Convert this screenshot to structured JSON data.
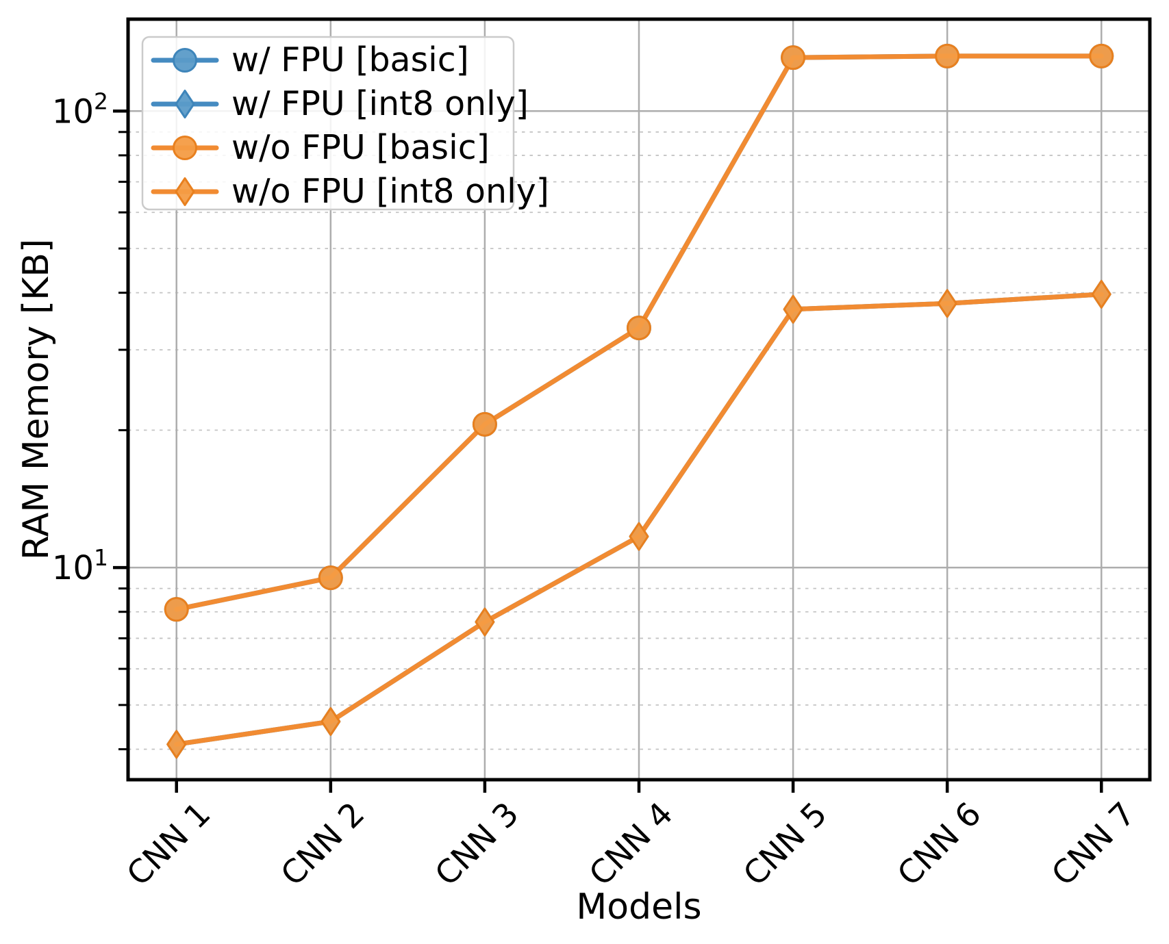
{
  "chart_data": {
    "type": "line",
    "title": "",
    "xlabel": "Models",
    "ylabel": "RAM Memory [KB]",
    "yscale": "log",
    "ylim": [
      3.43,
      159
    ],
    "grid": true,
    "legend_position": "upper left",
    "categories": [
      "CNN 1",
      "CNN 2",
      "CNN 3",
      "CNN 4",
      "CNN 5",
      "CNN 6",
      "CNN 7"
    ],
    "y_major_ticks": [
      10,
      100
    ],
    "y_minor_ticks": [
      4,
      5,
      6,
      7,
      8,
      9,
      20,
      30,
      40,
      50,
      60,
      70,
      80,
      90
    ],
    "series": [
      {
        "name": "w/ FPU [basic]",
        "marker": "circle",
        "line_color": "#458bc1",
        "marker_fill": "#5b9bc8",
        "marker_edge": "#3e85ba",
        "values": [
          8.1,
          9.5,
          20.6,
          33.5,
          131,
          132,
          132
        ]
      },
      {
        "name": "w/ FPU [int8 only]",
        "marker": "diamond",
        "line_color": "#458bc1",
        "marker_fill": "#5b9bc8",
        "marker_edge": "#3e85ba",
        "values": [
          4.1,
          4.6,
          7.6,
          11.7,
          36.8,
          37.9,
          39.7
        ]
      },
      {
        "name": "w/o FPU [basic]",
        "marker": "circle",
        "line_color": "#f18b32",
        "marker_fill": "#f49c44",
        "marker_edge": "#e8801f",
        "values": [
          8.1,
          9.5,
          20.6,
          33.5,
          131,
          132,
          132
        ]
      },
      {
        "name": "w/o FPU [int8 only]",
        "marker": "diamond",
        "line_color": "#f18b32",
        "marker_fill": "#f49c44",
        "marker_edge": "#e8801f",
        "values": [
          4.1,
          4.6,
          7.6,
          11.7,
          36.8,
          37.9,
          39.7
        ]
      }
    ],
    "colors": {
      "grid_major": "#adadad",
      "grid_minor": "#c4c4c4",
      "spine": "#000000",
      "legend_border": "#cbcbcb",
      "legend_bg": "#ffffff"
    }
  }
}
